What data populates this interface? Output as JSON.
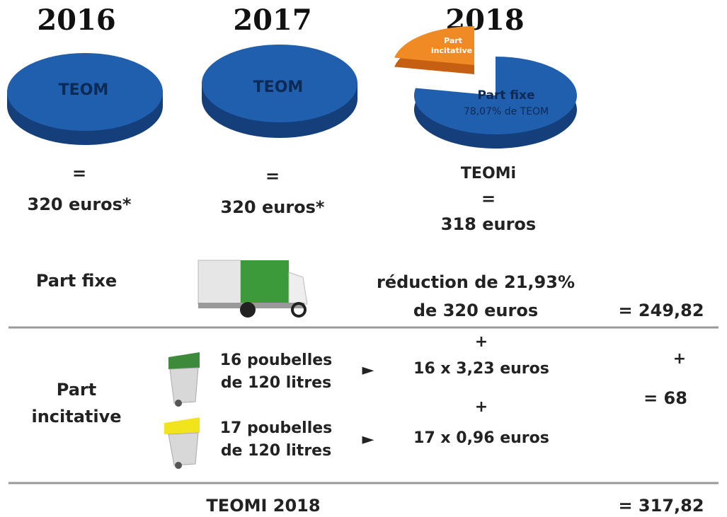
{
  "years": [
    "2016",
    "2017",
    "2018"
  ],
  "pies": {
    "p2016": "TEOM",
    "p2017": "TEOM",
    "part_fixe": "Part fixe",
    "part_fixe_share": "78,07% de TEOM",
    "part_incitative": [
      "Part",
      "incitative"
    ]
  },
  "totals": [
    {
      "eq": "=",
      "amount": "320 euros*"
    },
    {
      "eq": "=",
      "amount": "320 euros*"
    },
    {
      "name": "TEOMi",
      "eq": "=",
      "amount": "318 euros"
    }
  ],
  "part_fixe_row": {
    "label": "Part fixe",
    "calc": [
      "réduction de 21,93%",
      "de 320 euros"
    ],
    "result": "= 249,82"
  },
  "part_incitative_row": {
    "label": [
      "Part",
      "incitative"
    ],
    "bins": [
      {
        "desc": [
          "16 poubelles",
          "de 120 litres"
        ],
        "arrow": "►",
        "plus": "+",
        "calc": "16 x 3,23 euros"
      },
      {
        "desc": [
          "17 poubelles",
          "de 120 litres"
        ],
        "arrow": "►",
        "plus": "+",
        "calc": "17 x 0,96 euros"
      }
    ],
    "plus": "+",
    "result": "= 68"
  },
  "total_row": {
    "label": "TEOMI 2018",
    "result": "= 317,82"
  }
}
